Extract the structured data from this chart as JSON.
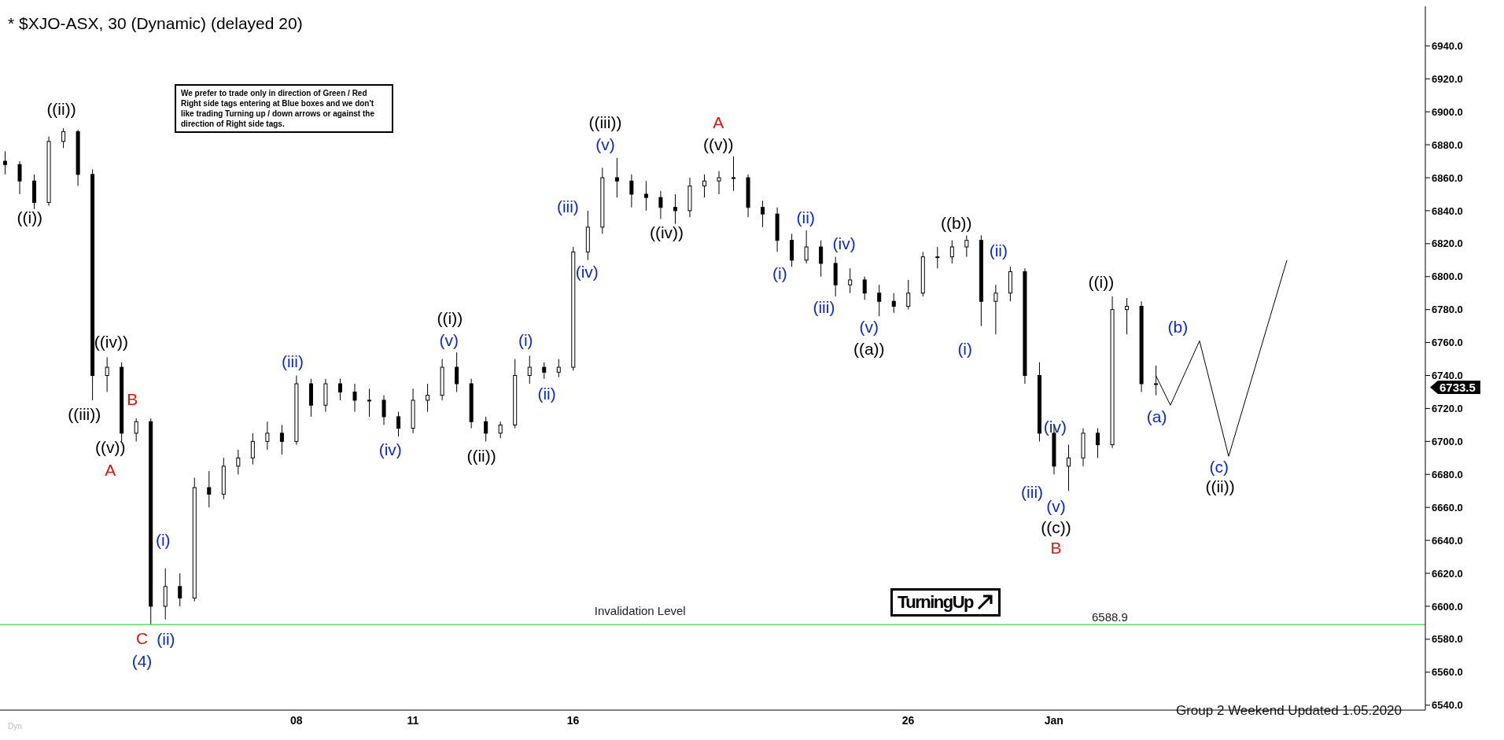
{
  "chart_data": {
    "type": "candlestick",
    "title": "* $XJO-ASX, 30 (Dynamic) (delayed 20)",
    "color": "#000000",
    "categories": [
      null,
      null,
      null,
      null,
      null,
      null,
      null,
      null,
      null,
      null,
      null,
      null,
      null,
      null,
      null,
      null,
      null,
      null,
      null,
      null,
      "08",
      null,
      null,
      null,
      null,
      null,
      null,
      null,
      "11",
      null,
      null,
      null,
      null,
      null,
      null,
      null,
      null,
      null,
      null,
      "16",
      null,
      null,
      null,
      null,
      null,
      null,
      null,
      null,
      null,
      null,
      null,
      null,
      null,
      null,
      null,
      null,
      null,
      null,
      null,
      null,
      null,
      null,
      "26",
      null,
      null,
      null,
      null,
      null,
      null,
      null,
      null,
      null,
      "Jan",
      null,
      null,
      null,
      null,
      null,
      null,
      null,
      null,
      null,
      null,
      null,
      null,
      null,
      null,
      null,
      null,
      null,
      null,
      null,
      null,
      null,
      null,
      null,
      null,
      null
    ],
    "ohlc": [
      [
        6870,
        6876,
        6862,
        6868
      ],
      [
        6868,
        6870,
        6850,
        6858
      ],
      [
        6858,
        6862,
        6841,
        6845
      ],
      [
        6845,
        6885,
        6843,
        6882
      ],
      [
        6882,
        6890,
        6878,
        6888
      ],
      [
        6888,
        6889,
        6855,
        6862
      ],
      [
        6862,
        6865,
        6725,
        6740
      ],
      [
        6740,
        6751,
        6730,
        6745
      ],
      [
        6745,
        6748,
        6700,
        6705
      ],
      [
        6705,
        6714,
        6700,
        6712
      ],
      [
        6712,
        6714,
        6589,
        6600
      ],
      [
        6600,
        6623,
        6592,
        6612
      ],
      [
        6612,
        6620,
        6600,
        6605
      ],
      [
        6605,
        6678,
        6603,
        6672
      ],
      [
        6672,
        6682,
        6660,
        6668
      ],
      [
        6668,
        6690,
        6665,
        6685
      ],
      [
        6685,
        6695,
        6680,
        6690
      ],
      [
        6690,
        6705,
        6686,
        6700
      ],
      [
        6700,
        6712,
        6695,
        6705
      ],
      [
        6705,
        6710,
        6692,
        6700
      ],
      [
        6700,
        6740,
        6698,
        6735
      ],
      [
        6735,
        6738,
        6715,
        6722
      ],
      [
        6722,
        6738,
        6718,
        6735
      ],
      [
        6735,
        6738,
        6725,
        6730
      ],
      [
        6730,
        6735,
        6718,
        6725
      ],
      [
        6725,
        6732,
        6715,
        6725
      ],
      [
        6725,
        6728,
        6710,
        6715
      ],
      [
        6715,
        6718,
        6703,
        6708
      ],
      [
        6708,
        6732,
        6705,
        6725
      ],
      [
        6725,
        6735,
        6718,
        6728
      ],
      [
        6728,
        6750,
        6725,
        6745
      ],
      [
        6745,
        6754,
        6730,
        6735
      ],
      [
        6735,
        6738,
        6708,
        6712
      ],
      [
        6712,
        6715,
        6700,
        6705
      ],
      [
        6705,
        6712,
        6702,
        6710
      ],
      [
        6710,
        6750,
        6708,
        6740
      ],
      [
        6740,
        6752,
        6735,
        6745
      ],
      [
        6745,
        6748,
        6738,
        6742
      ],
      [
        6742,
        6750,
        6739,
        6745
      ],
      [
        6745,
        6818,
        6743,
        6815
      ],
      [
        6815,
        6840,
        6810,
        6830
      ],
      [
        6830,
        6866,
        6826,
        6860
      ],
      [
        6860,
        6872,
        6848,
        6858
      ],
      [
        6858,
        6862,
        6842,
        6850
      ],
      [
        6850,
        6858,
        6840,
        6848
      ],
      [
        6848,
        6852,
        6835,
        6842
      ],
      [
        6842,
        6850,
        6832,
        6840
      ],
      [
        6840,
        6860,
        6836,
        6855
      ],
      [
        6855,
        6862,
        6848,
        6858
      ],
      [
        6858,
        6864,
        6850,
        6860
      ],
      [
        6860,
        6873,
        6852,
        6860
      ],
      [
        6860,
        6862,
        6836,
        6842
      ],
      [
        6842,
        6846,
        6830,
        6838
      ],
      [
        6838,
        6842,
        6815,
        6822
      ],
      [
        6822,
        6826,
        6806,
        6810
      ],
      [
        6810,
        6828,
        6808,
        6818
      ],
      [
        6818,
        6822,
        6800,
        6808
      ],
      [
        6808,
        6812,
        6788,
        6795
      ],
      [
        6795,
        6805,
        6790,
        6798
      ],
      [
        6798,
        6800,
        6786,
        6790
      ],
      [
        6790,
        6795,
        6776,
        6785
      ],
      [
        6785,
        6790,
        6778,
        6782
      ],
      [
        6782,
        6798,
        6780,
        6790
      ],
      [
        6790,
        6815,
        6788,
        6812
      ],
      [
        6812,
        6818,
        6805,
        6812
      ],
      [
        6812,
        6822,
        6808,
        6818
      ],
      [
        6818,
        6825,
        6812,
        6822
      ],
      [
        6822,
        6825,
        6770,
        6785
      ],
      [
        6785,
        6795,
        6765,
        6790
      ],
      [
        6790,
        6806,
        6785,
        6803
      ],
      [
        6803,
        6805,
        6735,
        6740
      ],
      [
        6740,
        6748,
        6700,
        6705
      ],
      [
        6705,
        6710,
        6680,
        6685
      ],
      [
        6685,
        6698,
        6670,
        6690
      ],
      [
        6690,
        6708,
        6685,
        6705
      ],
      [
        6705,
        6708,
        6690,
        6698
      ],
      [
        6698,
        6788,
        6696,
        6780
      ],
      [
        6780,
        6787,
        6765,
        6782
      ],
      [
        6782,
        6785,
        6730,
        6735
      ],
      [
        6735,
        6746,
        6728,
        6735
      ],
      null,
      null,
      null,
      null,
      null,
      null,
      null,
      null,
      null,
      null,
      null,
      null,
      null,
      null,
      null,
      null,
      null,
      null
    ],
    "series": [
      {
        "type": "line",
        "color": "#000000",
        "values": [
          null,
          null,
          null,
          null,
          null,
          null,
          null,
          null,
          null,
          null,
          null,
          null,
          null,
          null,
          null,
          null,
          null,
          null,
          null,
          null,
          null,
          null,
          null,
          null,
          null,
          null,
          null,
          null,
          null,
          null,
          null,
          null,
          null,
          null,
          null,
          null,
          null,
          null,
          null,
          null,
          null,
          null,
          null,
          null,
          null,
          null,
          null,
          null,
          null,
          null,
          null,
          null,
          null,
          null,
          null,
          null,
          null,
          null,
          null,
          null,
          null,
          null,
          null,
          null,
          null,
          null,
          null,
          null,
          null,
          null,
          null,
          null,
          null,
          null,
          null,
          null,
          null,
          null,
          null,
          6740,
          6722,
          null,
          6761,
          null,
          6691,
          null,
          null,
          null,
          6810,
          null,
          null,
          null,
          null,
          null,
          null,
          null,
          null,
          null
        ]
      }
    ],
    "ylim": [
      6537,
      6964
    ],
    "yticks": [
      {
        "value": 6540,
        "label": "6540.0"
      },
      {
        "value": 6560,
        "label": "6560.0"
      },
      {
        "value": 6580,
        "label": "6580.0"
      },
      {
        "value": 6600,
        "label": "6600.0"
      },
      {
        "value": 6620,
        "label": "6620.0"
      },
      {
        "value": 6640,
        "label": "6640.0"
      },
      {
        "value": 6660,
        "label": "6660.0"
      },
      {
        "value": 6680,
        "label": "6680.0"
      },
      {
        "value": 6700,
        "label": "6700.0"
      },
      {
        "value": 6720,
        "label": "6720.0"
      },
      {
        "value": 6740,
        "label": "6740.0"
      },
      {
        "value": 6760,
        "label": "6760.0"
      },
      {
        "value": 6780,
        "label": "6780.0"
      },
      {
        "value": 6800,
        "label": "6800.0"
      },
      {
        "value": 6820,
        "label": "6820.0"
      },
      {
        "value": 6840,
        "label": "6840.0"
      },
      {
        "value": 6860,
        "label": "6860.0"
      },
      {
        "value": 6880,
        "label": "6880.0"
      },
      {
        "value": 6900,
        "label": "6900.0"
      },
      {
        "value": 6920,
        "label": "6920.0"
      },
      {
        "value": 6940,
        "label": "6940.0"
      }
    ],
    "ref_lines": [
      {
        "axis": "y",
        "value": 6588.9,
        "label": "Invalidation Level",
        "color": "#66dd66"
      }
    ],
    "annotations": [
      "We prefer to trade only in direction of Green / Red Right side tags entering at Blue boxes and we don't like trading Turning up / down arrows or against the direction of Right side tags.",
      "TurningUp",
      "Group 2 Weekend Updated 1.05.2020",
      "Dyn",
      "6733.5",
      "6588.9",
      "((i))",
      "((ii))",
      "((iv))",
      "((iii))",
      "B",
      "((v))",
      "A",
      "(i)",
      "C",
      "(ii)",
      "(4)",
      "(iii)",
      "(iv)",
      "((i))",
      "(v)",
      "((ii))",
      "(i)",
      "(ii)",
      "((iii))",
      "(v)",
      "(iii)",
      "(iv)",
      "((iv))",
      "A",
      "((v))",
      "(ii)",
      "(i)",
      "(iv)",
      "(iii)",
      "(v)",
      "((a))",
      "((b))",
      "(ii)",
      "(i)",
      "(iv)",
      "(iii)",
      "(v)",
      "((c))",
      "B",
      "((i))",
      "(b)",
      "(a)",
      "(c)",
      "((ii))"
    ]
  }
}
